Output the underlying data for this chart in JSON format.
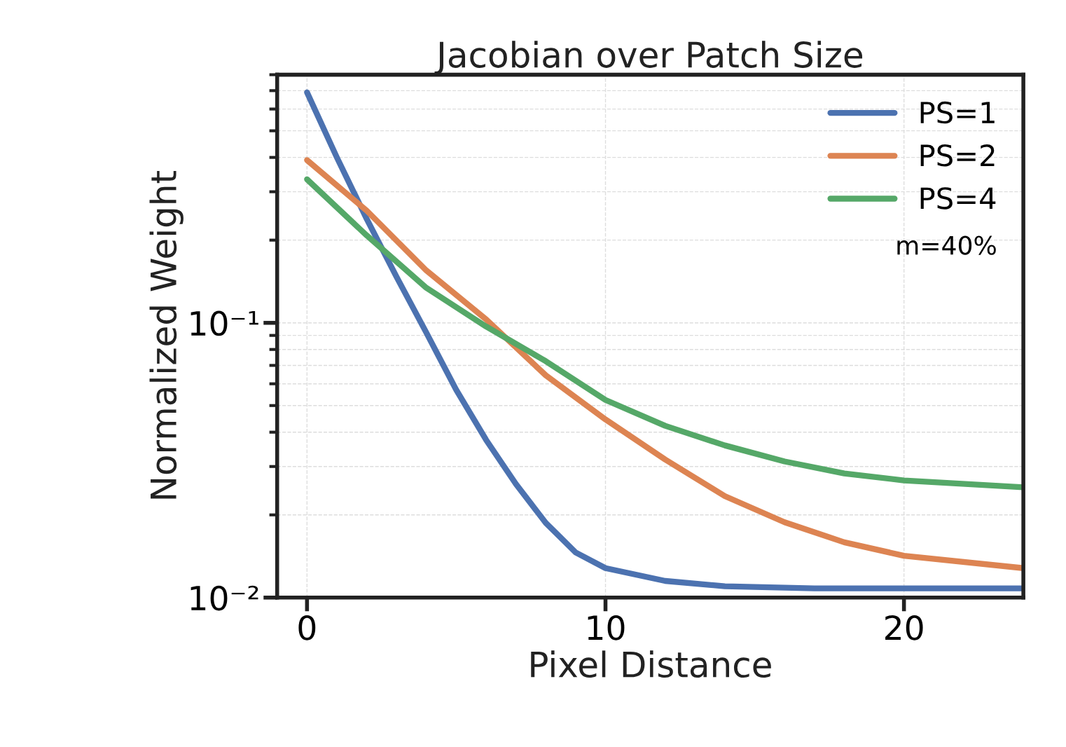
{
  "chart_data": {
    "type": "line",
    "title": "Jacobian over Patch Size",
    "xlabel": "Pixel Distance",
    "ylabel": "Normalized Weight",
    "log": "y",
    "grid": true,
    "legend": "top right",
    "line_style": "solid",
    "marker": "none",
    "xlim": [
      -1,
      24
    ],
    "xticks": [
      0,
      10,
      20
    ],
    "ylim": [
      0.01,
      0.8
    ],
    "yticks": [
      {
        "value": 0.01,
        "label": "10⁻²"
      },
      {
        "value": 0.1,
        "label": "10⁻¹"
      }
    ],
    "annotations": [
      "m=40%"
    ],
    "series": [
      {
        "name": "PS=1",
        "color": "#4c72b0",
        "x": [
          0,
          1,
          2,
          3,
          4,
          5,
          6,
          7,
          8,
          9,
          10,
          12,
          14,
          17,
          20,
          24
        ],
        "values": [
          0.69,
          0.4,
          0.239,
          0.147,
          0.092,
          0.057,
          0.0375,
          0.0259,
          0.0187,
          0.0146,
          0.0128,
          0.0115,
          0.011,
          0.0108,
          0.0108,
          0.0108
        ]
      },
      {
        "name": "PS=2",
        "color": "#dd8452",
        "x": [
          0,
          2,
          4,
          6,
          8,
          10,
          12,
          14,
          16,
          18,
          20,
          24
        ],
        "values": [
          0.391,
          0.256,
          0.155,
          0.103,
          0.0644,
          0.0445,
          0.0318,
          0.0234,
          0.0188,
          0.0159,
          0.0142,
          0.0128
        ]
      },
      {
        "name": "PS=4",
        "color": "#55a868",
        "x": [
          0,
          2,
          4,
          6,
          8,
          10,
          12,
          14,
          16,
          18,
          20,
          24
        ],
        "values": [
          0.333,
          0.208,
          0.134,
          0.097,
          0.0725,
          0.0524,
          0.0422,
          0.0358,
          0.0313,
          0.0283,
          0.0267,
          0.0252
        ]
      }
    ]
  }
}
